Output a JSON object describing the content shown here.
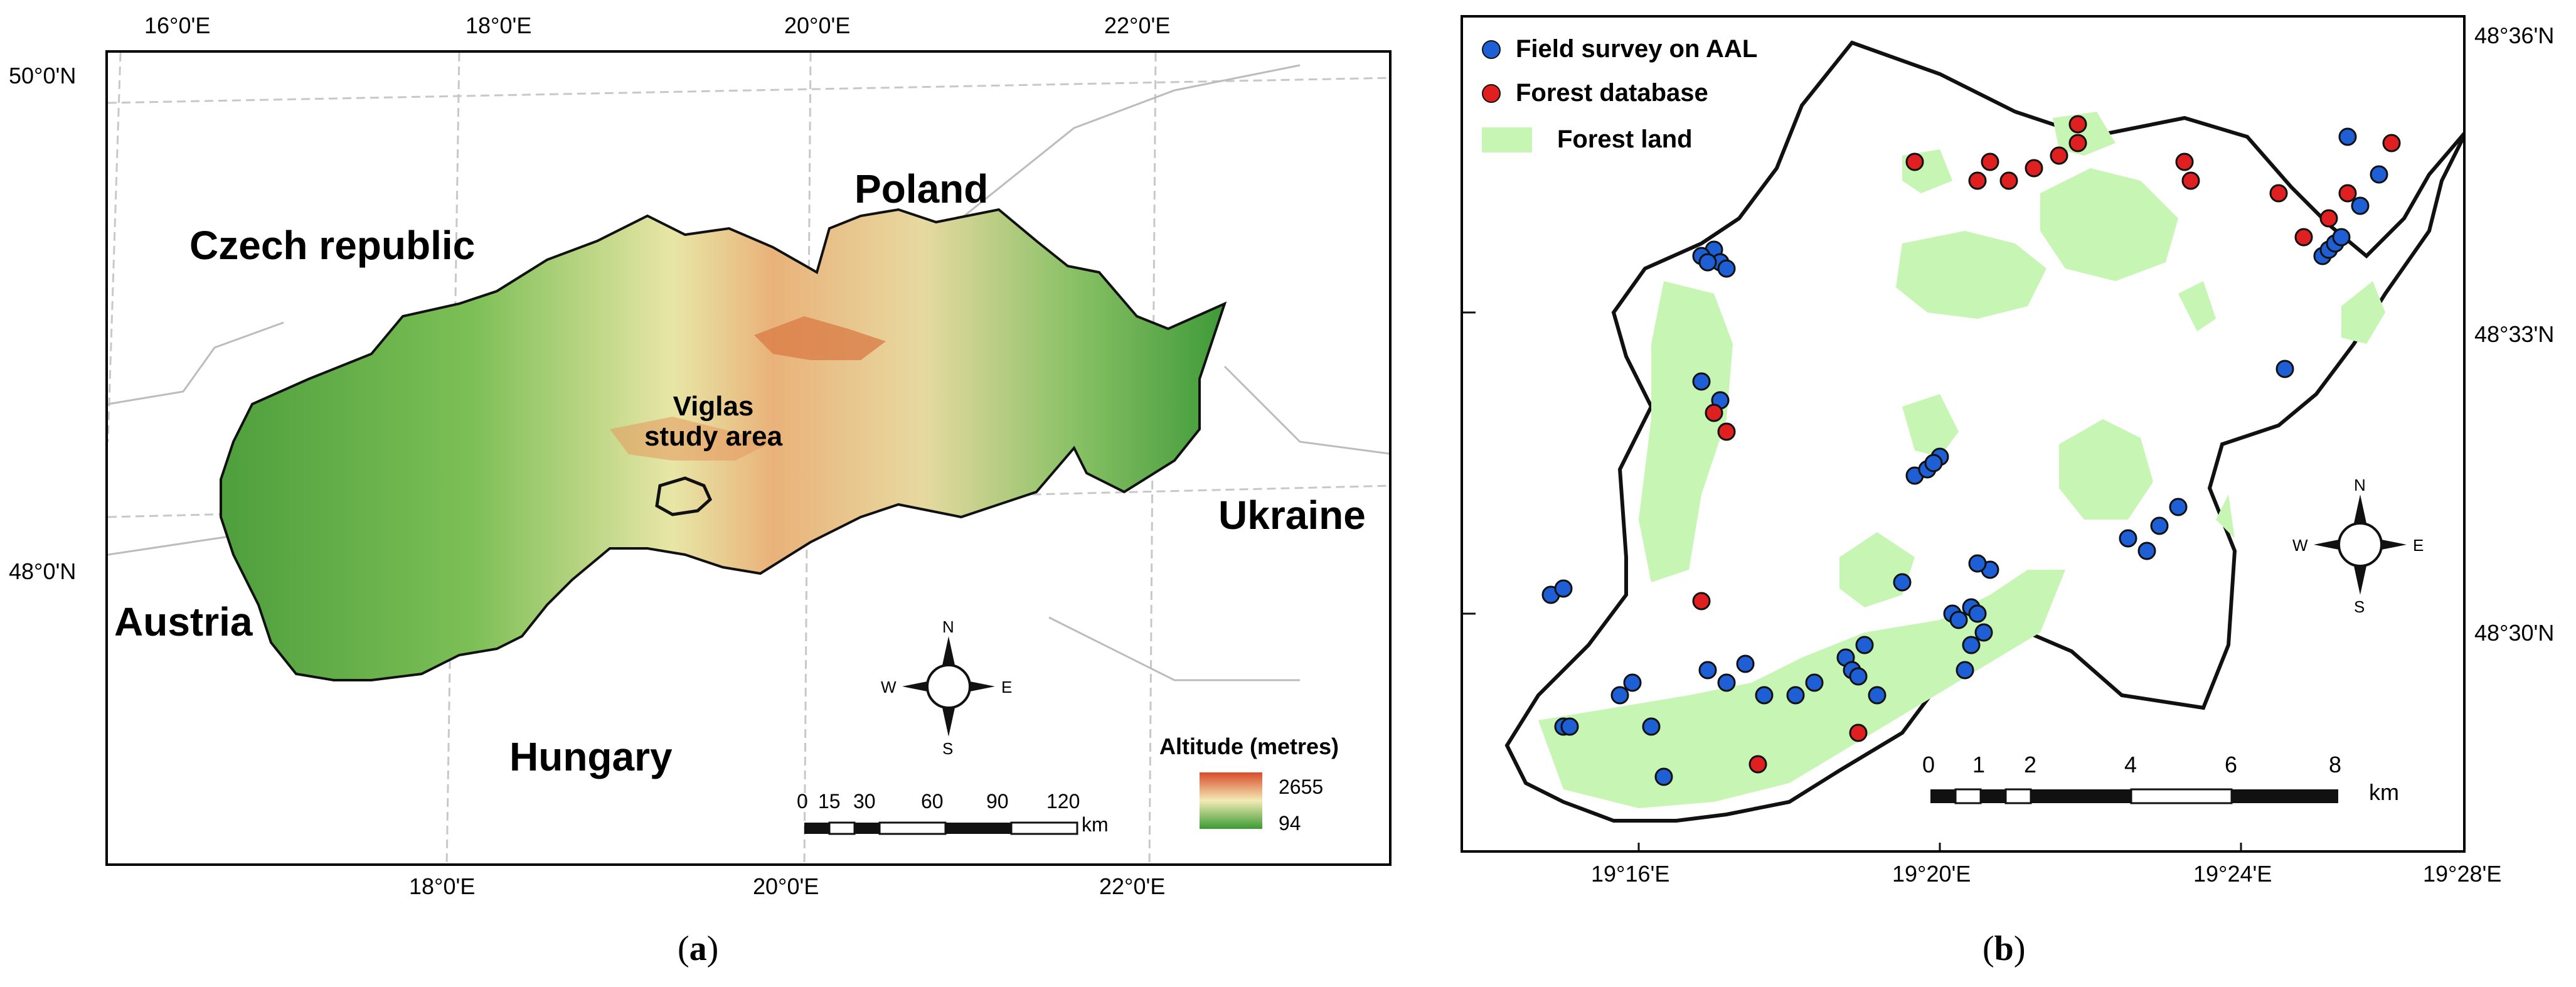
{
  "panel_a": {
    "caption_label": "a",
    "graticule_top": [
      "16°0'E",
      "18°0'E",
      "20°0'E",
      "22°0'E"
    ],
    "graticule_bottom": [
      "18°0'E",
      "20°0'E",
      "22°0'E"
    ],
    "graticule_left": [
      "50°0'N",
      "48°0'N"
    ],
    "countries": {
      "czech": "Czech republic",
      "poland": "Poland",
      "ukraine": "Ukraine",
      "austria": "Austria",
      "hungary": "Hungary"
    },
    "study_area_label_1": "Viglas",
    "study_area_label_2": "study area",
    "scale_ticks": [
      "0",
      "15",
      "30",
      "60",
      "90",
      "120"
    ],
    "scale_unit": "km",
    "altitude_title": "Altitude (metres)",
    "altitude_max": "2655",
    "altitude_min": "94",
    "compass": {
      "n": "N",
      "s": "S",
      "e": "E",
      "w": "W"
    }
  },
  "panel_b": {
    "caption_label": "b",
    "legend": {
      "field_survey": "Field survey on AAL",
      "forest_db": "Forest database",
      "forest_land": "Forest land"
    },
    "graticule_right": [
      "48°36'N",
      "48°33'N",
      "48°30'N"
    ],
    "graticule_bottom": [
      "19°16'E",
      "19°20'E",
      "19°24'E",
      "19°28'E"
    ],
    "scale_ticks": [
      "0",
      "1",
      "2",
      "4",
      "6",
      "8"
    ],
    "scale_unit": "km",
    "compass": {
      "n": "N",
      "s": "S",
      "e": "E",
      "w": "W"
    }
  },
  "colors": {
    "field_survey": "#1f5fd6",
    "forest_db": "#e02020",
    "forest_land": "#c6f5b4",
    "alt_high": "#d94c2b",
    "alt_mid": "#f3ebb6",
    "alt_low": "#3b9a32"
  }
}
